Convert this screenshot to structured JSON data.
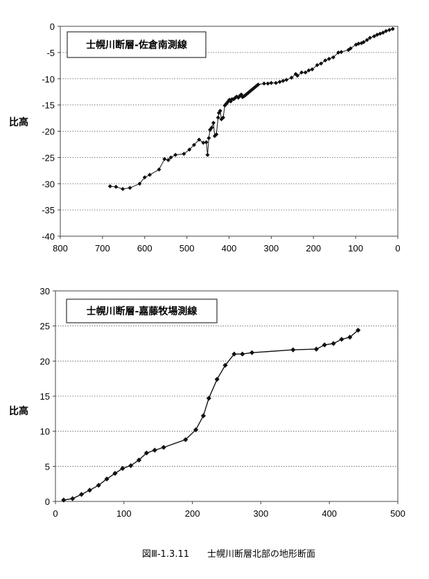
{
  "caption": "図Ⅲ-1.3.11　　士幌川断層北部の地形断面",
  "chart_data": [
    {
      "type": "line",
      "title": "士幌川断層-佐倉南測線",
      "ylabel": "比高",
      "xlabel": "",
      "xlim": [
        800,
        0
      ],
      "x_reversed": true,
      "ylim": [
        -40,
        0
      ],
      "xticks": [
        800,
        700,
        600,
        500,
        400,
        300,
        200,
        100,
        0
      ],
      "yticks": [
        0,
        -5,
        -10,
        -15,
        -20,
        -25,
        -30,
        -35,
        -40
      ],
      "grid": "horizontal dotted",
      "series": [
        {
          "x": [
            682,
            668,
            652,
            635,
            612,
            600,
            588,
            566,
            553,
            544,
            538,
            527,
            507,
            494,
            483,
            471,
            461,
            454,
            451,
            448,
            445,
            441,
            437,
            434,
            430,
            426,
            424,
            421,
            418,
            414,
            410,
            407,
            405,
            402,
            399,
            396,
            393,
            389,
            385,
            382,
            378,
            374,
            371,
            368,
            364,
            361,
            358,
            355,
            352,
            349,
            346,
            343,
            340,
            337,
            334,
            331,
            317,
            308,
            300,
            289,
            280,
            272,
            264,
            252,
            242,
            238,
            228,
            219,
            211,
            203,
            191,
            182,
            172,
            163,
            153,
            141,
            134,
            117,
            112,
            99,
            93,
            86,
            81,
            73,
            66,
            56,
            49,
            42,
            35,
            28,
            20,
            12
          ],
          "y": [
            -30.5,
            -30.6,
            -31.0,
            -30.8,
            -30.0,
            -28.8,
            -28.3,
            -27.3,
            -25.3,
            -25.5,
            -25.0,
            -24.5,
            -24.3,
            -23.5,
            -22.6,
            -21.6,
            -22.2,
            -22.1,
            -24.5,
            -21.3,
            -19.7,
            -19.3,
            -18.4,
            -20.9,
            -20.6,
            -17.4,
            -16.5,
            -16.1,
            -17.7,
            -17.4,
            -15.1,
            -14.8,
            -14.6,
            -14.3,
            -14.0,
            -14.3,
            -13.9,
            -13.9,
            -13.6,
            -13.4,
            -13.6,
            -13.2,
            -13.0,
            -13.5,
            -13.3,
            -13.1,
            -12.9,
            -12.7,
            -12.5,
            -12.3,
            -12.1,
            -11.9,
            -11.7,
            -11.5,
            -11.3,
            -11.1,
            -10.9,
            -10.9,
            -10.8,
            -10.8,
            -10.6,
            -10.4,
            -10.2,
            -9.8,
            -9.1,
            -9.4,
            -8.8,
            -8.8,
            -8.4,
            -8.2,
            -7.4,
            -7.1,
            -6.5,
            -6.2,
            -5.9,
            -5.0,
            -4.9,
            -4.5,
            -4.2,
            -3.5,
            -3.3,
            -3.2,
            -3.0,
            -2.6,
            -2.2,
            -1.9,
            -1.6,
            -1.4,
            -1.2,
            -0.9,
            -0.7,
            -0.5
          ]
        }
      ]
    },
    {
      "type": "line",
      "title": "士幌川断層-嘉藤牧場測線",
      "ylabel": "比高",
      "xlabel": "",
      "xlim": [
        0,
        500
      ],
      "ylim": [
        0,
        30
      ],
      "xticks": [
        0,
        100,
        200,
        300,
        400,
        500
      ],
      "yticks": [
        0,
        5,
        10,
        15,
        20,
        25,
        30
      ],
      "grid": "horizontal dotted",
      "series": [
        {
          "x": [
            12,
            25,
            38,
            50,
            63,
            75,
            87,
            98,
            110,
            122,
            133,
            145,
            158,
            190,
            205,
            216,
            224,
            236,
            248,
            261,
            273,
            287,
            347,
            381,
            393,
            406,
            418,
            430,
            442
          ],
          "y": [
            0.2,
            0.4,
            1.0,
            1.6,
            2.3,
            3.2,
            4.0,
            4.7,
            5.1,
            5.9,
            6.9,
            7.3,
            7.7,
            8.8,
            10.2,
            12.2,
            14.7,
            17.4,
            19.4,
            21.0,
            21.0,
            21.2,
            21.6,
            21.7,
            22.3,
            22.5,
            23.1,
            23.4,
            24.4
          ]
        }
      ]
    }
  ]
}
